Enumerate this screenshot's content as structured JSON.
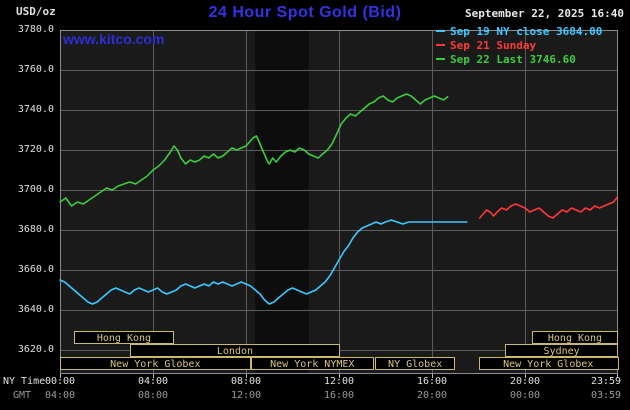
{
  "colors": {
    "title_blue": "#3333e6",
    "watermark_blue": "#2e2ed8",
    "grid": "#5c5c5c",
    "plot_background": "#1a1a1a",
    "band": "#0d0d0d",
    "border": "#8c8c8c",
    "session_box": "#c9b76d",
    "session_text": "#d6c581"
  },
  "header": {
    "units_label": "USD/oz",
    "title": "24 Hour Spot Gold (Bid)",
    "datetime": "September 22, 2025 16:40",
    "watermark": "www.kitco.com",
    "legend": [
      {
        "label": "Sep 19 NY close 3684.00",
        "color": "#3cc8ff"
      },
      {
        "label": "Sep 21 Sunday",
        "color": "#ff3838"
      },
      {
        "label": "Sep 22 Last 3746.60",
        "color": "#3ccc3c"
      }
    ]
  },
  "axes": {
    "ny_time_label": "NY Time",
    "gmt_label": "GMT",
    "y_ticks": [
      "3780.0",
      "3760.0",
      "3740.0",
      "3720.0",
      "3700.0",
      "3680.0",
      "3660.0",
      "3640.0",
      "3620.0"
    ],
    "x_ticks": [
      {
        "hour": 0,
        "ny": "00:00",
        "gmt": "04:00"
      },
      {
        "hour": 4,
        "ny": "04:00",
        "gmt": "08:00"
      },
      {
        "hour": 8,
        "ny": "08:00",
        "gmt": "12:00"
      },
      {
        "hour": 12,
        "ny": "12:00",
        "gmt": "16:00"
      },
      {
        "hour": 16,
        "ny": "16:00",
        "gmt": "20:00"
      },
      {
        "hour": 20,
        "ny": "20:00",
        "gmt": "00:00"
      },
      {
        "hour": 23.983,
        "ny": "23:59",
        "gmt": "03:59"
      }
    ]
  },
  "chart_data": {
    "type": "line",
    "title": "24 Hour Spot Gold (Bid)",
    "xlabel": "NY Time",
    "ylabel": "USD/oz",
    "ylim": [
      3620,
      3780
    ],
    "y_tick_step": 20,
    "x_range_hours": [
      0,
      24
    ],
    "grid": true,
    "legend_position": "top-right",
    "shaded_band": {
      "start_hour": 8.4,
      "end_hour": 10.7
    },
    "series": [
      {
        "name": "Sep 22 Last 3746.60",
        "color": "#3ccc3c",
        "points": [
          [
            0,
            3694
          ],
          [
            0.25,
            3696
          ],
          [
            0.5,
            3692
          ],
          [
            0.75,
            3694
          ],
          [
            1,
            3693
          ],
          [
            1.25,
            3695
          ],
          [
            1.5,
            3697
          ],
          [
            1.75,
            3699
          ],
          [
            2,
            3701
          ],
          [
            2.25,
            3700
          ],
          [
            2.5,
            3702
          ],
          [
            2.75,
            3703
          ],
          [
            3,
            3704
          ],
          [
            3.25,
            3703
          ],
          [
            3.5,
            3705
          ],
          [
            3.75,
            3707
          ],
          [
            4,
            3710
          ],
          [
            4.25,
            3712
          ],
          [
            4.5,
            3715
          ],
          [
            4.75,
            3719
          ],
          [
            4.9,
            3722
          ],
          [
            5.05,
            3720
          ],
          [
            5.2,
            3716
          ],
          [
            5.4,
            3713
          ],
          [
            5.6,
            3715
          ],
          [
            5.8,
            3714
          ],
          [
            6,
            3715
          ],
          [
            6.2,
            3717
          ],
          [
            6.4,
            3716
          ],
          [
            6.6,
            3718
          ],
          [
            6.8,
            3716
          ],
          [
            7,
            3717
          ],
          [
            7.2,
            3719
          ],
          [
            7.4,
            3721
          ],
          [
            7.6,
            3720
          ],
          [
            7.8,
            3721
          ],
          [
            8,
            3722
          ],
          [
            8.15,
            3724
          ],
          [
            8.3,
            3726
          ],
          [
            8.45,
            3727
          ],
          [
            8.6,
            3723
          ],
          [
            8.75,
            3719
          ],
          [
            8.9,
            3715
          ],
          [
            9,
            3713
          ],
          [
            9.15,
            3716
          ],
          [
            9.3,
            3714
          ],
          [
            9.5,
            3717
          ],
          [
            9.7,
            3719
          ],
          [
            9.9,
            3720
          ],
          [
            10.1,
            3719
          ],
          [
            10.3,
            3721
          ],
          [
            10.5,
            3720
          ],
          [
            10.7,
            3718
          ],
          [
            10.9,
            3717
          ],
          [
            11.1,
            3716
          ],
          [
            11.3,
            3718
          ],
          [
            11.5,
            3720
          ],
          [
            11.7,
            3723
          ],
          [
            11.9,
            3728
          ],
          [
            12.1,
            3733
          ],
          [
            12.3,
            3736
          ],
          [
            12.5,
            3738
          ],
          [
            12.7,
            3737
          ],
          [
            12.9,
            3739
          ],
          [
            13.1,
            3741
          ],
          [
            13.3,
            3743
          ],
          [
            13.5,
            3744
          ],
          [
            13.7,
            3746
          ],
          [
            13.9,
            3747
          ],
          [
            14.1,
            3745
          ],
          [
            14.3,
            3744
          ],
          [
            14.5,
            3746
          ],
          [
            14.7,
            3747
          ],
          [
            14.9,
            3748
          ],
          [
            15.1,
            3747
          ],
          [
            15.3,
            3745
          ],
          [
            15.5,
            3743
          ],
          [
            15.7,
            3745
          ],
          [
            15.9,
            3746
          ],
          [
            16.1,
            3747
          ],
          [
            16.3,
            3746
          ],
          [
            16.5,
            3745
          ],
          [
            16.67,
            3746.6
          ]
        ]
      },
      {
        "name": "Sep 19 NY close 3684.00",
        "color": "#3cc8ff",
        "points": [
          [
            0,
            3655
          ],
          [
            0.2,
            3654
          ],
          [
            0.4,
            3652
          ],
          [
            0.6,
            3650
          ],
          [
            0.8,
            3648
          ],
          [
            1,
            3646
          ],
          [
            1.2,
            3644
          ],
          [
            1.4,
            3643
          ],
          [
            1.6,
            3644
          ],
          [
            1.8,
            3646
          ],
          [
            2,
            3648
          ],
          [
            2.2,
            3650
          ],
          [
            2.4,
            3651
          ],
          [
            2.6,
            3650
          ],
          [
            2.8,
            3649
          ],
          [
            3,
            3648
          ],
          [
            3.2,
            3650
          ],
          [
            3.4,
            3651
          ],
          [
            3.6,
            3650
          ],
          [
            3.8,
            3649
          ],
          [
            4,
            3650
          ],
          [
            4.2,
            3651
          ],
          [
            4.4,
            3649
          ],
          [
            4.6,
            3648
          ],
          [
            4.8,
            3649
          ],
          [
            5,
            3650
          ],
          [
            5.2,
            3652
          ],
          [
            5.4,
            3653
          ],
          [
            5.6,
            3652
          ],
          [
            5.8,
            3651
          ],
          [
            6,
            3652
          ],
          [
            6.2,
            3653
          ],
          [
            6.4,
            3652
          ],
          [
            6.6,
            3654
          ],
          [
            6.8,
            3653
          ],
          [
            7,
            3654
          ],
          [
            7.2,
            3653
          ],
          [
            7.4,
            3652
          ],
          [
            7.6,
            3653
          ],
          [
            7.8,
            3654
          ],
          [
            8,
            3653
          ],
          [
            8.2,
            3652
          ],
          [
            8.4,
            3650
          ],
          [
            8.6,
            3648
          ],
          [
            8.8,
            3645
          ],
          [
            9,
            3643
          ],
          [
            9.2,
            3644
          ],
          [
            9.4,
            3646
          ],
          [
            9.6,
            3648
          ],
          [
            9.8,
            3650
          ],
          [
            10,
            3651
          ],
          [
            10.2,
            3650
          ],
          [
            10.4,
            3649
          ],
          [
            10.6,
            3648
          ],
          [
            10.8,
            3649
          ],
          [
            11,
            3650
          ],
          [
            11.2,
            3652
          ],
          [
            11.4,
            3654
          ],
          [
            11.6,
            3657
          ],
          [
            11.8,
            3661
          ],
          [
            12,
            3665
          ],
          [
            12.2,
            3669
          ],
          [
            12.4,
            3672
          ],
          [
            12.6,
            3676
          ],
          [
            12.8,
            3679
          ],
          [
            13,
            3681
          ],
          [
            13.2,
            3682
          ],
          [
            13.4,
            3683
          ],
          [
            13.6,
            3684
          ],
          [
            13.8,
            3683
          ],
          [
            14,
            3684
          ],
          [
            14.25,
            3685
          ],
          [
            14.5,
            3684
          ],
          [
            14.75,
            3683
          ],
          [
            15,
            3684
          ],
          [
            15.5,
            3684
          ],
          [
            16,
            3684
          ],
          [
            16.5,
            3684
          ],
          [
            17,
            3684
          ],
          [
            17.5,
            3684
          ]
        ]
      },
      {
        "name": "Sep 21 Sunday",
        "color": "#ff3838",
        "points": [
          [
            18.05,
            3686
          ],
          [
            18.2,
            3688
          ],
          [
            18.35,
            3690
          ],
          [
            18.5,
            3689
          ],
          [
            18.65,
            3687
          ],
          [
            18.8,
            3689
          ],
          [
            19,
            3691
          ],
          [
            19.2,
            3690
          ],
          [
            19.4,
            3692
          ],
          [
            19.6,
            3693
          ],
          [
            19.8,
            3692
          ],
          [
            20,
            3691
          ],
          [
            20.2,
            3689
          ],
          [
            20.4,
            3690
          ],
          [
            20.6,
            3691
          ],
          [
            20.8,
            3689
          ],
          [
            21,
            3687
          ],
          [
            21.2,
            3686
          ],
          [
            21.4,
            3688
          ],
          [
            21.6,
            3690
          ],
          [
            21.8,
            3689
          ],
          [
            22,
            3691
          ],
          [
            22.2,
            3690
          ],
          [
            22.4,
            3689
          ],
          [
            22.6,
            3691
          ],
          [
            22.8,
            3690
          ],
          [
            23,
            3692
          ],
          [
            23.2,
            3691
          ],
          [
            23.4,
            3692
          ],
          [
            23.6,
            3693
          ],
          [
            23.8,
            3694
          ],
          [
            23.98,
            3696.5
          ]
        ]
      }
    ],
    "sessions": [
      {
        "row": 0,
        "start_hour": 0.6,
        "end_hour": 4.9,
        "label": "Hong Kong"
      },
      {
        "row": 0,
        "start_hour": 20.3,
        "end_hour": 24,
        "label": "Hong Kong"
      },
      {
        "row": 1,
        "start_hour": 3.0,
        "end_hour": 12.05,
        "label": "London"
      },
      {
        "row": 1,
        "start_hour": 19.15,
        "end_hour": 24,
        "label": "Sydney"
      },
      {
        "row": 2,
        "start_hour": 0,
        "end_hour": 8.2,
        "label": "New York Globex"
      },
      {
        "row": 2,
        "start_hour": 8.2,
        "end_hour": 13.5,
        "label": "New York NYMEX"
      },
      {
        "row": 2,
        "start_hour": 13.55,
        "end_hour": 17.0,
        "label": "NY Globex"
      },
      {
        "row": 2,
        "start_hour": 18.0,
        "end_hour": 24,
        "label": "New York Globex"
      }
    ]
  }
}
